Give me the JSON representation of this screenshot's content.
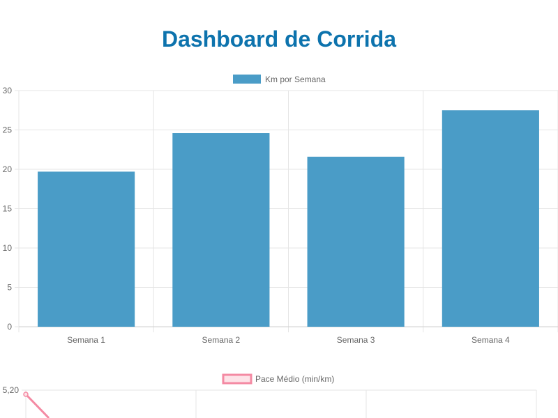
{
  "page": {
    "title": "Dashboard de Corrida"
  },
  "colors": {
    "title": "#0d73ad",
    "bar_fill": "#4a9cc7",
    "pace_line": "#f48aa3",
    "pace_fill": "#fde3e8",
    "grid": "#e5e5e5",
    "tick_text": "#666666"
  },
  "chart_data": [
    {
      "type": "bar",
      "legend": "Km por Semana",
      "legend_position": "top",
      "categories": [
        "Semana 1",
        "Semana 2",
        "Semana 3",
        "Semana 4"
      ],
      "series": [
        {
          "name": "Km por Semana",
          "values": [
            19.7,
            24.6,
            21.6,
            27.5
          ]
        }
      ],
      "ylim": [
        0,
        30
      ],
      "yticks": [
        0,
        5,
        10,
        15,
        20,
        25,
        30
      ],
      "grid": true
    },
    {
      "type": "line",
      "legend": "Pace Médio (min/km)",
      "legend_position": "top",
      "visible_ytick": "5,20",
      "series": [
        {
          "name": "Pace Médio (min/km)",
          "values": [
            5.2
          ]
        }
      ],
      "grid": true
    }
  ]
}
